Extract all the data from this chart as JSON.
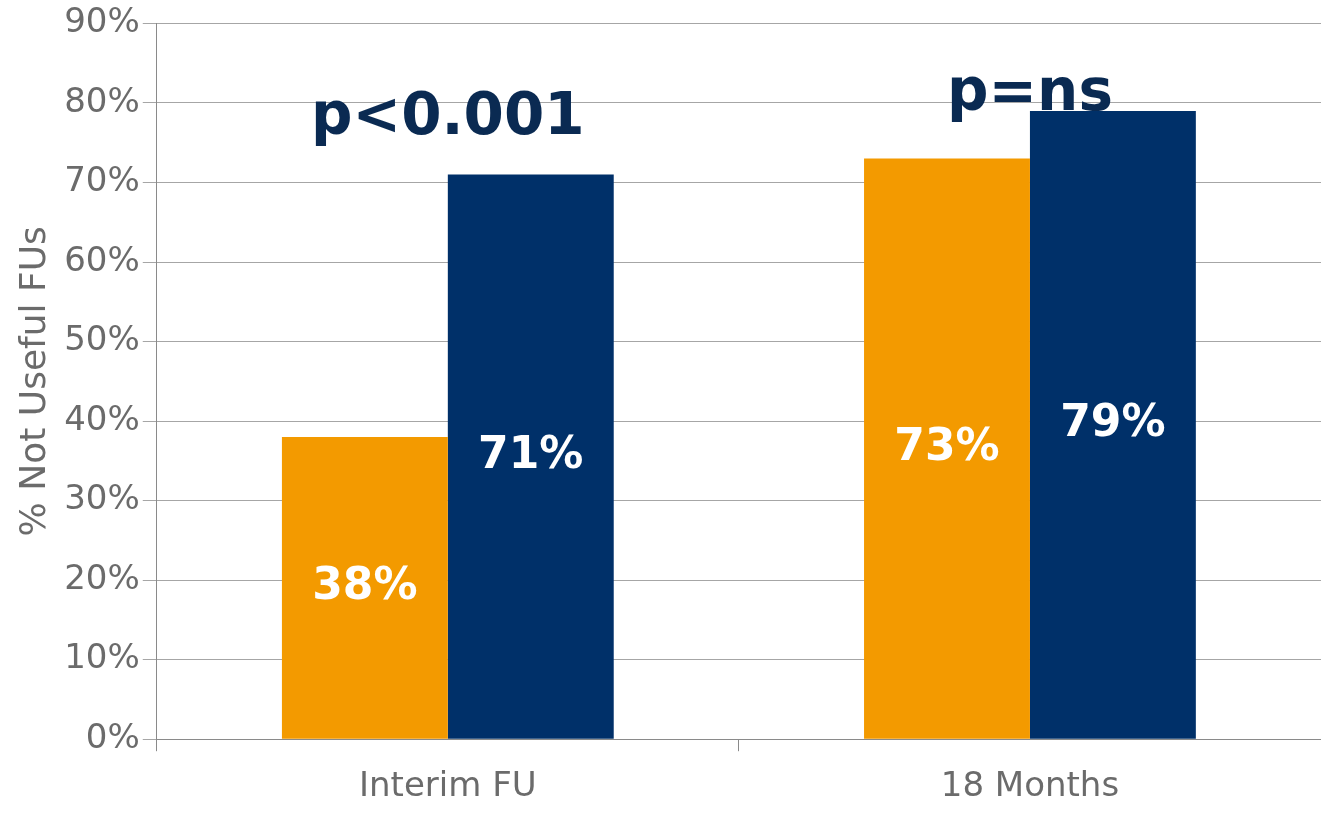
{
  "chart_data": {
    "type": "bar",
    "ylabel": "% Not Useful FUs",
    "categories": [
      "Interim FU",
      "18 Months"
    ],
    "series": [
      {
        "color": "#f39a00",
        "values": [
          38,
          73
        ],
        "value_labels": [
          "38%",
          "73%"
        ]
      },
      {
        "color": "#003069",
        "values": [
          71,
          79
        ],
        "value_labels": [
          "71%",
          "79%"
        ]
      }
    ],
    "ylim": [
      0,
      90
    ],
    "yticks": [
      {
        "value": 0,
        "label": "0%"
      },
      {
        "value": 10,
        "label": "10%"
      },
      {
        "value": 20,
        "label": "20%"
      },
      {
        "value": 30,
        "label": "30%"
      },
      {
        "value": 40,
        "label": "40%"
      },
      {
        "value": 50,
        "label": "50%"
      },
      {
        "value": 60,
        "label": "60%"
      },
      {
        "value": 70,
        "label": "70%"
      },
      {
        "value": 80,
        "label": "80%"
      },
      {
        "value": 90,
        "label": "90%"
      }
    ],
    "grid": "y",
    "legend": false,
    "annotations": [
      "p<0.001",
      "p=ns"
    ]
  }
}
